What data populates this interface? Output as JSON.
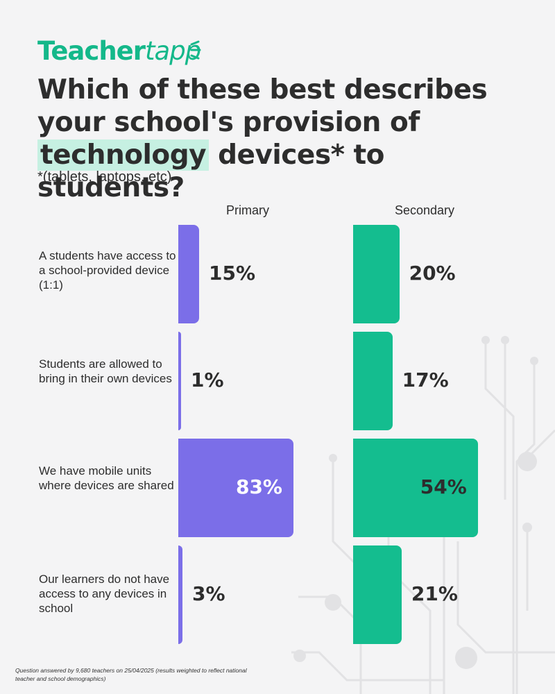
{
  "brand": {
    "name_part1": "Teacher",
    "name_part2": "tapp",
    "color": "#14b88a"
  },
  "title": {
    "before": "Which of these best describes your school's provision of ",
    "highlight": "technology",
    "after": " devices* to students?"
  },
  "subtitle": "*(tablets, laptops, etc)",
  "footnote": "Question answered by 9,680 teachers on 25/04/2025 (results weighted to reflect national teacher and school demographics)",
  "colors": {
    "primary": "#7b6ee8",
    "secondary": "#14bd8f",
    "background": "#f4f4f5",
    "highlight": "#c6f0e2"
  },
  "chart_data": {
    "type": "bar",
    "orientation": "horizontal",
    "categories": [
      "A students have access to a school-provided device (1:1)",
      "Students are allowed to bring in their own devices",
      "We have mobile units where devices are shared",
      "Our learners do not have access to any devices in school"
    ],
    "series": [
      {
        "name": "Primary",
        "values": [
          15,
          1,
          83,
          3
        ],
        "labels": [
          "15%",
          "1%",
          "83%",
          "3%"
        ],
        "color": "#7b6ee8"
      },
      {
        "name": "Secondary",
        "values": [
          20,
          17,
          54,
          21
        ],
        "labels": [
          "20%",
          "17%",
          "54%",
          "21%"
        ],
        "color": "#14bd8f"
      }
    ],
    "unit": "%",
    "grid": false,
    "legend": "column headers"
  }
}
